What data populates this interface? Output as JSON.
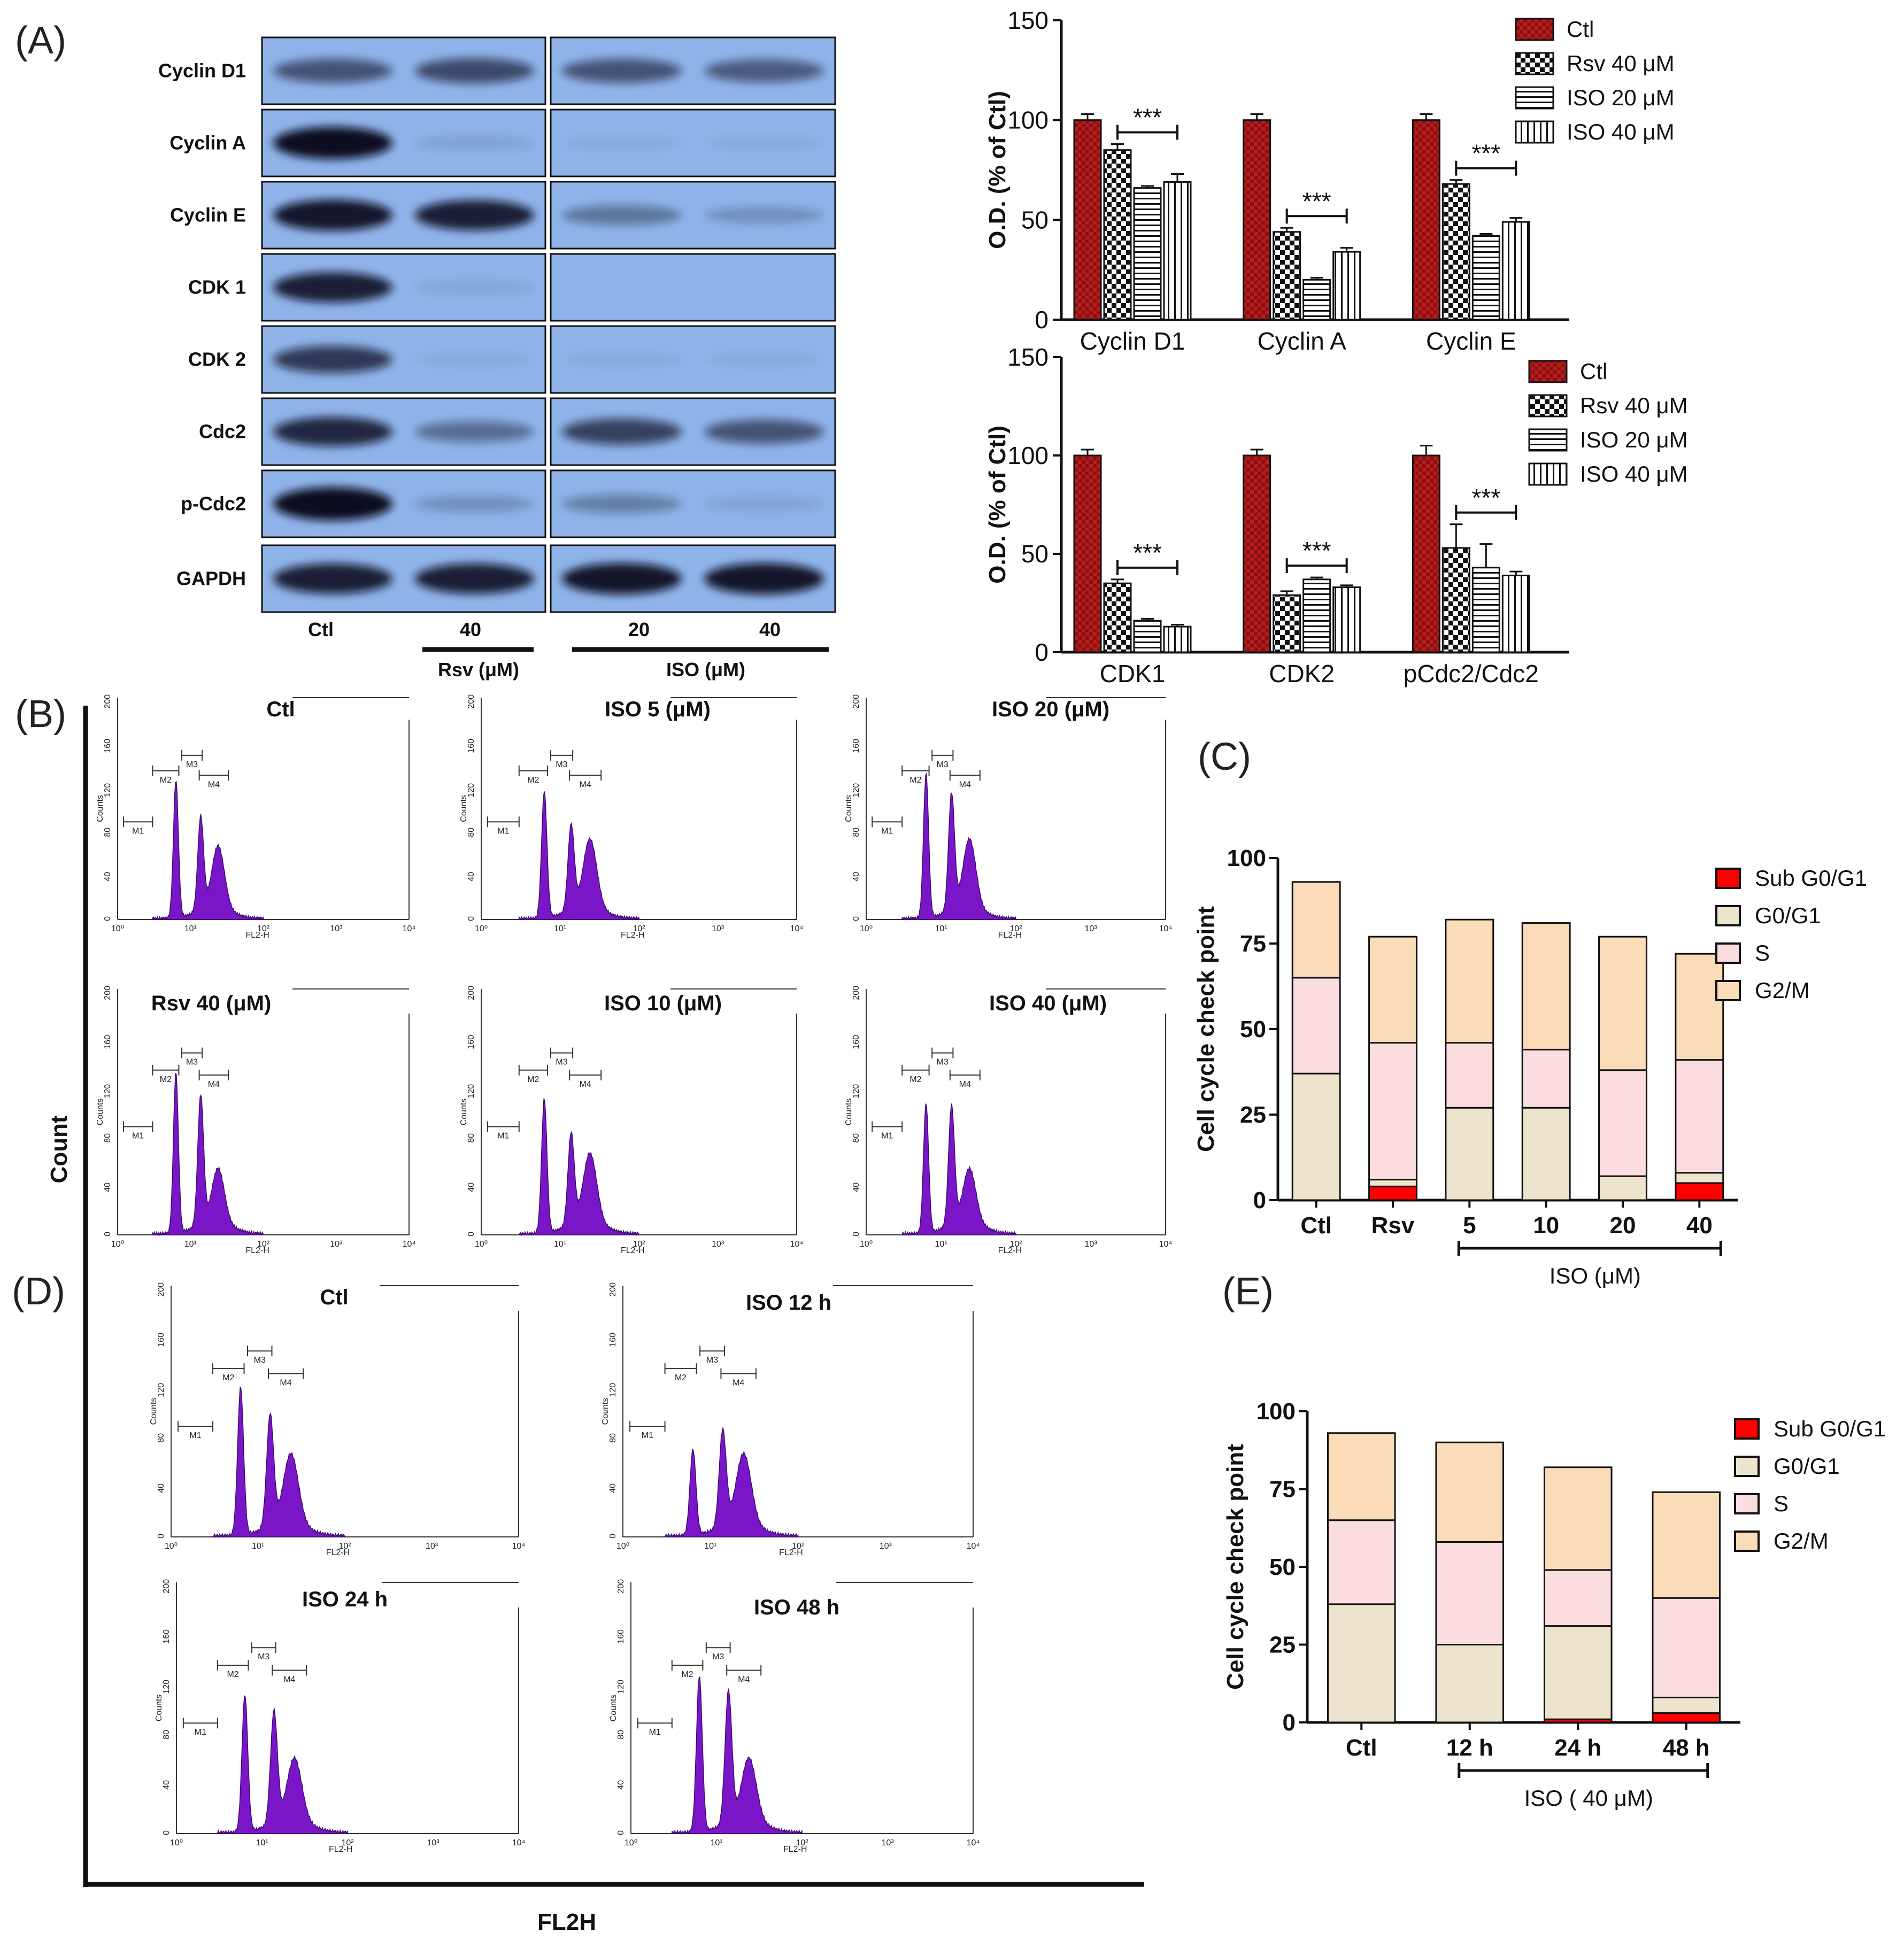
{
  "panel_labels": {
    "A": "(A)",
    "B": "(B)",
    "C": "(C)",
    "D": "(D)",
    "E": "(E)"
  },
  "western_blot": {
    "rows": [
      "Cyclin D1",
      "Cyclin A",
      "Cyclin E",
      "CDK 1",
      "CDK 2",
      "Cdc2",
      "p-Cdc2",
      "GAPDH"
    ],
    "lanes": [
      "Ctl",
      "40",
      "20",
      "40"
    ],
    "group_rsv": "Rsv (μM)",
    "group_iso": "ISO (μM)",
    "band_intensity": [
      [
        0.55,
        0.6,
        0.55,
        0.5
      ],
      [
        0.95,
        0.1,
        0.05,
        0.05
      ],
      [
        0.9,
        0.85,
        0.35,
        0.2
      ],
      [
        0.85,
        0.08,
        0.0,
        0.0
      ],
      [
        0.7,
        0.05,
        0.05,
        0.05
      ],
      [
        0.8,
        0.4,
        0.65,
        0.55
      ],
      [
        1.0,
        0.2,
        0.3,
        0.1
      ],
      [
        0.85,
        0.85,
        0.9,
        0.9
      ]
    ]
  },
  "colors": {
    "ctl_red": "#b71c1c",
    "blot_bg": "#8fb3e8",
    "purple": "#7a16c8",
    "sub_red": "#ff0000",
    "g0_beige": "#ece4cc",
    "s_pink": "#fbdde0",
    "g2_orange": "#fbdcb8"
  },
  "chart_data": [
    {
      "id": "A_top",
      "type": "bar",
      "categories": [
        "Cyclin D1",
        "Cyclin A",
        "Cyclin E"
      ],
      "series": [
        {
          "name": "Ctl",
          "values": [
            100,
            100,
            100
          ],
          "errors": [
            3,
            3,
            3
          ]
        },
        {
          "name": "Rsv 40  μM",
          "values": [
            85,
            44,
            68
          ],
          "errors": [
            3,
            2,
            2
          ]
        },
        {
          "name": "ISO 20  μM",
          "values": [
            66,
            20,
            42
          ],
          "errors": [
            1,
            1,
            1
          ]
        },
        {
          "name": "ISO 40  μM",
          "values": [
            69,
            34,
            49
          ],
          "errors": [
            4,
            2,
            2
          ]
        }
      ],
      "ylabel": "O.D. (% of Ctl)",
      "ylim": [
        0,
        150
      ],
      "yticks": [
        "0",
        "50",
        "100",
        "150"
      ],
      "significance": [
        "***",
        "***",
        "***"
      ]
    },
    {
      "id": "A_bottom",
      "type": "bar",
      "categories": [
        "CDK1",
        "CDK2",
        "pCdc2/Cdc2"
      ],
      "series": [
        {
          "name": "Ctl",
          "values": [
            100,
            100,
            100
          ],
          "errors": [
            3,
            3,
            5
          ]
        },
        {
          "name": "Rsv 40  μM",
          "values": [
            35,
            29,
            53
          ],
          "errors": [
            2,
            2,
            12
          ]
        },
        {
          "name": "ISO 20  μM",
          "values": [
            16,
            37,
            43
          ],
          "errors": [
            1,
            1,
            12
          ]
        },
        {
          "name": "ISO 40  μM",
          "values": [
            13,
            33,
            39
          ],
          "errors": [
            1,
            1,
            2
          ]
        }
      ],
      "ylabel": "O.D. (% of Ctl)",
      "ylim": [
        0,
        150
      ],
      "yticks": [
        "0",
        "50",
        "100",
        "150"
      ],
      "significance": [
        "***",
        "***",
        "***"
      ]
    },
    {
      "id": "B",
      "type": "histogram",
      "ylabel": "Count",
      "xlabel": "FL2H",
      "panels": [
        {
          "title": "Ctl",
          "peaks": [
            1.0,
            0.68,
            0.45
          ]
        },
        {
          "title": "ISO 5 (μM)",
          "peaks": [
            0.92,
            0.62,
            0.5
          ]
        },
        {
          "title": "ISO 20 (μM)",
          "peaks": [
            1.05,
            0.85,
            0.5
          ]
        },
        {
          "title": "Rsv 40 (μM)",
          "peaks": [
            1.05,
            0.85,
            0.35
          ]
        },
        {
          "title": "ISO 10 (μM)",
          "peaks": [
            0.88,
            0.6,
            0.45
          ]
        },
        {
          "title": "ISO 40 (μM)",
          "peaks": [
            0.85,
            0.78,
            0.35
          ]
        }
      ],
      "yticks": [
        "0",
        "40",
        "80",
        "120",
        "160",
        "200"
      ],
      "xticks": [
        "10⁰",
        "10¹",
        "10²",
        "10³",
        "10⁴"
      ],
      "axis_title_x": "FL2-H",
      "axis_title_y": "Counts",
      "markers": [
        "M1",
        "M2",
        "M3",
        "M4"
      ]
    },
    {
      "id": "C",
      "type": "bar",
      "stacked": true,
      "categories": [
        "Ctl",
        "Rsv",
        "5",
        "10",
        "20",
        "40"
      ],
      "group_label": "ISO (μM)",
      "series": [
        {
          "name": "Sub G0/G1",
          "values": [
            0,
            4,
            0,
            0,
            0,
            5
          ]
        },
        {
          "name": "G0/G1",
          "values": [
            37,
            2,
            27,
            27,
            7,
            3
          ]
        },
        {
          "name": "S",
          "values": [
            28,
            40,
            19,
            17,
            31,
            33
          ]
        },
        {
          "name": "G2/M",
          "values": [
            28,
            31,
            36,
            37,
            39,
            31
          ]
        }
      ],
      "ylabel": "Cell cycle check point",
      "ylim": [
        0,
        100
      ],
      "yticks": [
        "0",
        "25",
        "50",
        "75",
        "100"
      ]
    },
    {
      "id": "D",
      "type": "histogram",
      "panels": [
        {
          "title": "Ctl",
          "peaks": [
            0.95,
            0.72,
            0.45
          ]
        },
        {
          "title": "ISO 12 h",
          "peaks": [
            0.55,
            0.62,
            0.45
          ]
        },
        {
          "title": "ISO 24 h",
          "peaks": [
            0.88,
            0.72,
            0.4
          ]
        },
        {
          "title": "ISO 48 h",
          "peaks": [
            1.0,
            0.85,
            0.4
          ]
        }
      ],
      "yticks": [
        "0",
        "40",
        "80",
        "120",
        "160",
        "200"
      ],
      "xticks": [
        "10⁰",
        "10¹",
        "10²",
        "10³",
        "10⁴"
      ],
      "axis_title_x": "FL2-H",
      "axis_title_y": "Counts",
      "markers": [
        "M1",
        "M2",
        "M3",
        "M4"
      ]
    },
    {
      "id": "E",
      "type": "bar",
      "stacked": true,
      "categories": [
        "Ctl",
        "12 h",
        "24 h",
        "48 h"
      ],
      "group_label": "ISO ( 40 μM)",
      "series": [
        {
          "name": "Sub G0/G1",
          "values": [
            0,
            0,
            1,
            3
          ]
        },
        {
          "name": "G0/G1",
          "values": [
            38,
            25,
            30,
            5
          ]
        },
        {
          "name": "S",
          "values": [
            27,
            33,
            18,
            32
          ]
        },
        {
          "name": "G2/M",
          "values": [
            28,
            32,
            33,
            34
          ]
        }
      ],
      "ylabel": "Cell cycle check point",
      "ylim": [
        0,
        100
      ],
      "yticks": [
        "0",
        "25",
        "50",
        "75",
        "100"
      ]
    }
  ]
}
